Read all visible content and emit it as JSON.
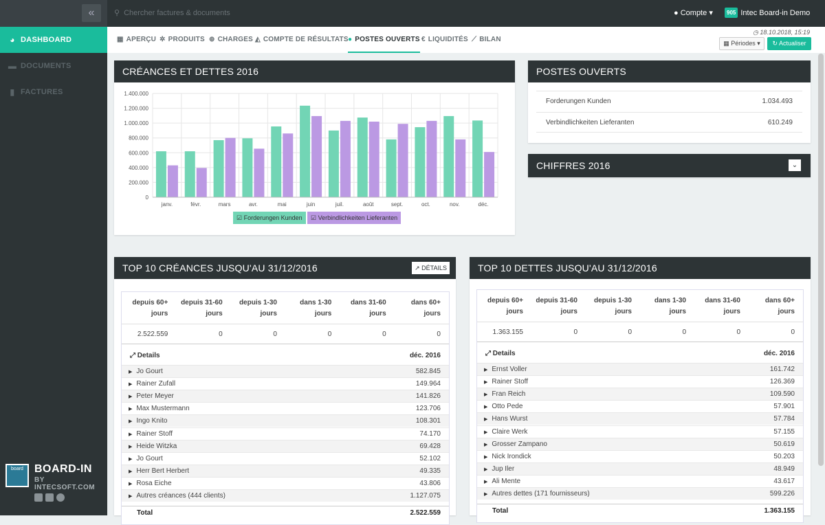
{
  "search": {
    "placeholder": "Chercher factures & documents"
  },
  "topbar": {
    "compte": "Compte",
    "org_badge": "905",
    "org_name": "Intec Board-in Demo"
  },
  "sidebar": {
    "items": [
      {
        "label": "DASHBOARD",
        "icon": "pie-chart-icon",
        "active": true
      },
      {
        "label": "DOCUMENTS",
        "icon": "folder-icon",
        "active": false
      },
      {
        "label": "FACTURES",
        "icon": "file-icon",
        "active": false
      }
    ]
  },
  "brand": {
    "logo_text": "board",
    "name": "BOARD-IN",
    "sub": "BY INTECSOFT.COM"
  },
  "tabs": [
    {
      "label": "APERÇU",
      "icon": "grid-icon"
    },
    {
      "label": "PRODUITS",
      "icon": "gear-icon"
    },
    {
      "label": "CHARGES",
      "icon": "plus-circle-icon"
    },
    {
      "label": "COMPTE DE RÉSULTATS",
      "icon": "area-chart-icon"
    },
    {
      "label": "POSTES OUVERTS",
      "icon": "users-icon",
      "active": true
    },
    {
      "label": "LIQUIDITÉS",
      "icon": "euro-icon"
    },
    {
      "label": "BILAN",
      "icon": "line-chart-icon"
    }
  ],
  "timestamp": "18.10.2018, 15:19",
  "buttons": {
    "periodes": "Périodes",
    "actualiser": "Actualiser"
  },
  "chart_panel": {
    "title": "CRÉANCES ET DETTES 2016"
  },
  "chart_data": {
    "type": "bar",
    "categories": [
      "janv.",
      "févr.",
      "mars",
      "avr.",
      "mai",
      "juin",
      "juil.",
      "août",
      "sept.",
      "oct.",
      "nov.",
      "déc."
    ],
    "series": [
      {
        "name": "Forderungen Kunden",
        "color": "#72d5b5",
        "values": [
          620000,
          620000,
          770000,
          795000,
          955000,
          1235000,
          900000,
          1075000,
          780000,
          945000,
          1095000,
          1035000
        ]
      },
      {
        "name": "Verbindlichkeiten Lieferanten",
        "color": "#bb99e3",
        "values": [
          430000,
          395000,
          800000,
          655000,
          860000,
          1095000,
          1030000,
          1020000,
          990000,
          1030000,
          780000,
          610249
        ]
      }
    ],
    "ylim": [
      0,
      1400000
    ],
    "yticks": [
      "0",
      "200.000",
      "400.000",
      "600.000",
      "800.000",
      "1.000.000",
      "1.200.000",
      "1.400.000"
    ],
    "grid": true,
    "legend": "bottom"
  },
  "postes": {
    "title": "POSTES OUVERTS",
    "rows": [
      {
        "label": "Forderungen Kunden",
        "value": "1.034.493"
      },
      {
        "label": "Verbindlichkeiten Lieferanten",
        "value": "610.249"
      }
    ]
  },
  "chiffres": {
    "title": "CHIFFRES 2016"
  },
  "creances": {
    "title": "TOP 10 CRÉANCES JUSQU'AU 31/12/2016",
    "details_btn": "DÉTAILS",
    "headers": [
      "depuis 60+ jours",
      "depuis 31-60 jours",
      "depuis 1-30 jours",
      "dans 1-30 jours",
      "dans 31-60 jours",
      "dans 60+ jours"
    ],
    "values": [
      "2.522.559",
      "0",
      "0",
      "0",
      "0",
      "0"
    ],
    "details_label": "Details",
    "period_label": "déc. 2016",
    "rows": [
      {
        "name": "Jo Gourt",
        "value": "582.845"
      },
      {
        "name": "Rainer Zufall",
        "value": "149.964"
      },
      {
        "name": "Peter Meyer",
        "value": "141.826"
      },
      {
        "name": "Max Mustermann",
        "value": "123.706"
      },
      {
        "name": "Ingo Knito",
        "value": "108.301"
      },
      {
        "name": "Rainer Stoff",
        "value": "74.170"
      },
      {
        "name": "Heide Witzka",
        "value": "69.428"
      },
      {
        "name": "Jo Gourt",
        "value": "52.102"
      },
      {
        "name": "Herr Bert Herbert",
        "value": "49.335"
      },
      {
        "name": "Rosa Eiche",
        "value": "43.806"
      },
      {
        "name": "Autres créances (444 clients)",
        "value": "1.127.075"
      }
    ],
    "total_label": "Total",
    "total_value": "2.522.559"
  },
  "dettes": {
    "title": "TOP 10 DETTES JUSQU'AU 31/12/2016",
    "headers": [
      "depuis 60+ jours",
      "depuis 31-60 jours",
      "depuis 1-30 jours",
      "dans 1-30 jours",
      "dans 31-60 jours",
      "dans 60+ jours"
    ],
    "values": [
      "1.363.155",
      "0",
      "0",
      "0",
      "0",
      "0"
    ],
    "details_label": "Details",
    "period_label": "déc. 2016",
    "rows": [
      {
        "name": "Ernst Voller",
        "value": "161.742"
      },
      {
        "name": "Rainer Stoff",
        "value": "126.369"
      },
      {
        "name": "Fran Reich",
        "value": "109.590"
      },
      {
        "name": "Otto Pede",
        "value": "57.901"
      },
      {
        "name": "Hans Wurst",
        "value": "57.784"
      },
      {
        "name": "Claire Werk",
        "value": "57.155"
      },
      {
        "name": "Grosser Zampano",
        "value": "50.619"
      },
      {
        "name": "Nick Irondick",
        "value": "50.203"
      },
      {
        "name": "Jup Iler",
        "value": "48.949"
      },
      {
        "name": "Ali Mente",
        "value": "43.617"
      },
      {
        "name": "Autres dettes (171 fournisseurs)",
        "value": "599.226"
      }
    ],
    "total_label": "Total",
    "total_value": "1.363.155"
  }
}
